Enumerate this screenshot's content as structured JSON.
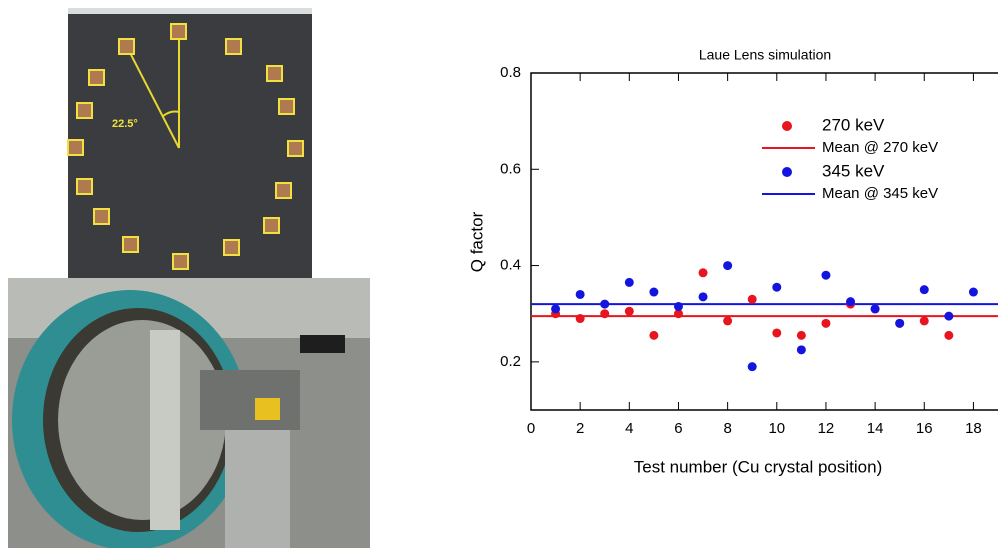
{
  "photo_annotation": "22.5°",
  "chart_data": {
    "type": "scatter",
    "title": "Laue Lens simulation",
    "xlabel": "Test number (Cu crystal position)",
    "ylabel": "Q factor",
    "x": [
      1,
      2,
      3,
      4,
      5,
      6,
      7,
      8,
      9,
      10,
      11,
      12,
      13,
      14,
      15,
      16,
      17,
      18
    ],
    "series": [
      {
        "name": "270 keV",
        "color": "#e8141e",
        "values": [
          0.3,
          0.29,
          0.3,
          0.305,
          0.255,
          0.3,
          0.385,
          0.285,
          0.33,
          0.26,
          0.255,
          0.28,
          0.32,
          0.31,
          0.28,
          0.285,
          0.255,
          null
        ]
      },
      {
        "name": "345 keV",
        "color": "#1414e0",
        "values": [
          0.31,
          0.34,
          0.32,
          0.365,
          0.345,
          0.315,
          0.335,
          0.4,
          0.19,
          0.355,
          0.225,
          0.38,
          0.325,
          0.31,
          0.28,
          0.35,
          0.295,
          0.345
        ]
      }
    ],
    "means": [
      {
        "name": "Mean @ 270 keV",
        "color": "#e8141e",
        "value": 0.295
      },
      {
        "name": "Mean @ 345 keV",
        "color": "#1414e0",
        "value": 0.32
      }
    ],
    "xlim": [
      0,
      19
    ],
    "ylim": [
      0.1,
      0.8
    ],
    "xticks": [
      0,
      2,
      4,
      6,
      8,
      10,
      12,
      14,
      16,
      18
    ],
    "yticks": [
      {
        "value": 0.2,
        "label": "0.2"
      },
      {
        "value": 0.4,
        "label": "0.4"
      },
      {
        "value": 0.6,
        "label": "0.6"
      },
      {
        "value": 0.8,
        "label": "0.8"
      }
    ]
  }
}
